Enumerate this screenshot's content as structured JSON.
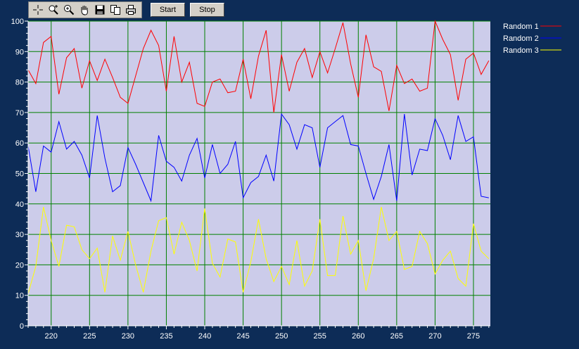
{
  "toolbar": {
    "icons": [
      "crosshair-icon",
      "zoom-icon",
      "zoom-in-icon",
      "pan-hand-icon",
      "save-icon",
      "copy-icon",
      "print-icon"
    ],
    "start_label": "Start",
    "stop_label": "Stop"
  },
  "colors": {
    "background": "#0d2c57",
    "plot_area": "#ccccea",
    "grid": "#008000",
    "random1": "#ff0000",
    "random2": "#0000ff",
    "random3": "#ffff00"
  },
  "chart_data": {
    "type": "line",
    "title": "",
    "xlabel": "",
    "ylabel": "",
    "xlim": [
      217,
      277.2
    ],
    "ylim": [
      0,
      100
    ],
    "x_ticks": [
      220,
      225,
      230,
      235,
      240,
      245,
      250,
      255,
      260,
      265,
      270,
      275
    ],
    "y_ticks": [
      0,
      10,
      20,
      30,
      40,
      50,
      60,
      70,
      80,
      90,
      100
    ],
    "grid": true,
    "legend_position": "right",
    "x": [
      217,
      218,
      219,
      220,
      221,
      222,
      223,
      224,
      225,
      226,
      227,
      228,
      229,
      230,
      231,
      232,
      233,
      234,
      235,
      236,
      237,
      238,
      239,
      240,
      241,
      242,
      243,
      244,
      245,
      246,
      247,
      248,
      249,
      250,
      251,
      252,
      253,
      254,
      255,
      256,
      257,
      258,
      259,
      260,
      261,
      262,
      263,
      264,
      265,
      266,
      267,
      268,
      269,
      270,
      271,
      272,
      273,
      274,
      275,
      276,
      277
    ],
    "series": [
      {
        "name": "Random 1",
        "color": "#ff0000",
        "values": [
          84,
          79.5,
          93,
          95,
          76,
          88,
          91,
          78,
          87,
          80.5,
          87.5,
          81.5,
          75,
          73,
          82,
          91,
          97,
          92,
          77,
          95,
          80,
          86.5,
          73,
          72,
          80,
          81,
          76.5,
          77,
          87.5,
          74.5,
          88.5,
          97,
          70,
          89,
          77,
          86.5,
          91,
          81.5,
          90,
          83,
          91,
          99.5,
          86,
          75,
          95.5,
          85,
          83.5,
          70.5,
          85.5,
          79.5,
          81,
          77,
          78,
          100,
          94,
          89,
          74,
          87.5,
          89.5,
          82.5,
          87
        ]
      },
      {
        "name": "Random 2",
        "color": "#0000ff",
        "values": [
          59,
          44,
          59,
          57,
          67,
          58,
          60.5,
          56,
          48.5,
          69,
          55,
          44,
          46,
          58.5,
          53,
          47,
          41,
          62.5,
          54,
          52,
          47.5,
          56,
          61.5,
          48.5,
          59.5,
          50,
          53,
          60.5,
          42,
          47,
          49,
          56,
          47.5,
          69.5,
          66,
          58,
          66,
          65,
          52,
          65,
          67,
          69,
          59.5,
          59,
          50,
          41.5,
          49,
          59.5,
          41,
          69.5,
          49.5,
          58,
          57.5,
          68,
          62.5,
          54.5,
          69,
          60.5,
          62,
          42.5,
          42
        ]
      },
      {
        "name": "Random 3",
        "color": "#ffff00",
        "values": [
          10.5,
          19.5,
          39,
          28,
          19.5,
          33,
          32.5,
          25,
          22,
          25.5,
          11,
          29.5,
          21.5,
          31,
          20,
          11,
          24.5,
          34.5,
          35.5,
          23.5,
          34,
          28,
          18,
          38.5,
          20.5,
          16,
          28.5,
          27.5,
          11,
          21,
          35,
          22,
          14.5,
          19.5,
          13.5,
          28,
          13,
          18,
          35,
          16.5,
          16.5,
          36,
          23.5,
          28,
          11.5,
          22,
          39,
          28,
          31,
          18.5,
          19.5,
          31,
          27,
          17,
          21.5,
          24.5,
          15.5,
          13,
          33.5,
          24.5,
          22
        ]
      }
    ]
  }
}
